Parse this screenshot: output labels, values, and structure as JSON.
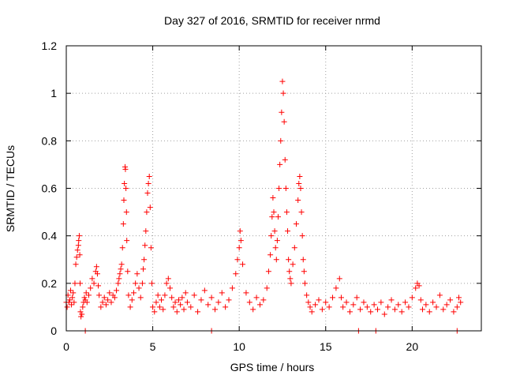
{
  "chart_data": {
    "type": "scatter",
    "title": "Day 327 of 2016, SRMTID for receiver nrmd",
    "xlabel": "GPS time / hours",
    "ylabel": "SRMTID / TECUs",
    "xlim": [
      0,
      24
    ],
    "ylim": [
      0,
      1.2
    ],
    "x_ticks": [
      0,
      5,
      10,
      15,
      20
    ],
    "x_tick_labels": [
      "0",
      "5",
      "10",
      "15",
      "20"
    ],
    "y_ticks": [
      0,
      0.2,
      0.4,
      0.6,
      0.8,
      1.0,
      1.2
    ],
    "y_tick_labels": [
      "0",
      "0.2",
      "0.4",
      "0.6",
      "0.8",
      "1",
      "1.2"
    ],
    "grid": true,
    "marker": "plus",
    "color": "#ff0000",
    "series": [
      {
        "name": "SRMTID",
        "x": [
          0.0,
          0.05,
          0.1,
          0.15,
          0.2,
          0.25,
          0.3,
          0.35,
          0.4,
          0.45,
          0.5,
          0.55,
          0.6,
          0.65,
          0.7,
          0.72,
          0.75,
          0.78,
          0.8,
          0.82,
          0.85,
          0.9,
          0.95,
          1.0,
          1.05,
          1.1,
          1.15,
          1.2,
          1.3,
          1.4,
          1.5,
          1.6,
          1.7,
          1.75,
          1.8,
          1.85,
          1.9,
          2.0,
          2.1,
          2.2,
          2.3,
          2.4,
          2.5,
          2.6,
          2.7,
          2.8,
          2.9,
          3.0,
          3.05,
          3.1,
          3.15,
          3.2,
          3.25,
          3.3,
          3.33,
          3.36,
          3.4,
          3.42,
          3.45,
          3.48,
          3.5,
          3.55,
          3.6,
          3.7,
          3.8,
          3.9,
          4.0,
          4.1,
          4.2,
          4.3,
          4.4,
          4.45,
          4.5,
          4.55,
          4.6,
          4.65,
          4.7,
          4.75,
          4.8,
          4.85,
          4.9,
          4.95,
          5.0,
          5.1,
          5.2,
          5.3,
          5.4,
          5.5,
          5.6,
          5.7,
          5.8,
          5.9,
          6.0,
          6.1,
          6.2,
          6.3,
          6.4,
          6.5,
          6.6,
          6.7,
          6.8,
          6.9,
          7.0,
          7.2,
          7.4,
          7.6,
          7.8,
          8.0,
          8.2,
          8.4,
          8.6,
          8.8,
          9.0,
          9.2,
          9.4,
          9.6,
          9.8,
          9.9,
          10.0,
          10.05,
          10.1,
          10.2,
          10.4,
          10.6,
          10.8,
          11.0,
          11.2,
          11.4,
          11.6,
          11.7,
          11.8,
          11.85,
          11.9,
          11.95,
          12.0,
          12.05,
          12.1,
          12.15,
          12.2,
          12.25,
          12.3,
          12.35,
          12.4,
          12.45,
          12.5,
          12.55,
          12.6,
          12.65,
          12.7,
          12.75,
          12.8,
          12.85,
          12.9,
          12.95,
          13.0,
          13.1,
          13.2,
          13.3,
          13.4,
          13.45,
          13.5,
          13.55,
          13.6,
          13.65,
          13.7,
          13.75,
          13.8,
          13.9,
          14.0,
          14.1,
          14.2,
          14.4,
          14.6,
          14.8,
          15.0,
          15.2,
          15.4,
          15.6,
          15.8,
          15.9,
          16.0,
          16.2,
          16.4,
          16.6,
          16.8,
          17.0,
          17.2,
          17.4,
          17.6,
          17.8,
          18.0,
          18.2,
          18.4,
          18.6,
          18.8,
          19.0,
          19.2,
          19.4,
          19.6,
          19.8,
          20.0,
          20.2,
          20.3,
          20.4,
          20.5,
          20.6,
          20.8,
          21.0,
          21.2,
          21.4,
          21.6,
          21.8,
          22.0,
          22.2,
          22.4,
          22.6,
          22.7,
          22.8
        ],
        "y": [
          0.12,
          0.1,
          0.15,
          0.12,
          0.13,
          0.17,
          0.11,
          0.14,
          0.16,
          0.12,
          0.2,
          0.28,
          0.31,
          0.34,
          0.36,
          0.38,
          0.4,
          0.32,
          0.2,
          0.08,
          0.06,
          0.07,
          0.1,
          0.12,
          0.14,
          0.13,
          0.16,
          0.12,
          0.15,
          0.18,
          0.22,
          0.2,
          0.25,
          0.27,
          0.24,
          0.19,
          0.15,
          0.1,
          0.12,
          0.14,
          0.11,
          0.13,
          0.16,
          0.12,
          0.15,
          0.14,
          0.17,
          0.2,
          0.22,
          0.24,
          0.26,
          0.28,
          0.35,
          0.45,
          0.55,
          0.62,
          0.69,
          0.68,
          0.6,
          0.5,
          0.38,
          0.25,
          0.15,
          0.1,
          0.13,
          0.16,
          0.2,
          0.24,
          0.18,
          0.14,
          0.2,
          0.26,
          0.3,
          0.36,
          0.42,
          0.5,
          0.58,
          0.62,
          0.65,
          0.52,
          0.35,
          0.2,
          0.1,
          0.08,
          0.12,
          0.15,
          0.1,
          0.13,
          0.09,
          0.15,
          0.2,
          0.22,
          0.18,
          0.14,
          0.1,
          0.12,
          0.08,
          0.13,
          0.11,
          0.14,
          0.09,
          0.16,
          0.12,
          0.1,
          0.15,
          0.08,
          0.13,
          0.17,
          0.11,
          0.14,
          0.09,
          0.12,
          0.16,
          0.1,
          0.13,
          0.18,
          0.24,
          0.3,
          0.35,
          0.42,
          0.38,
          0.28,
          0.16,
          0.12,
          0.09,
          0.14,
          0.11,
          0.13,
          0.18,
          0.25,
          0.32,
          0.4,
          0.48,
          0.56,
          0.5,
          0.42,
          0.35,
          0.3,
          0.38,
          0.48,
          0.6,
          0.7,
          0.8,
          0.92,
          1.05,
          1.0,
          0.88,
          0.72,
          0.6,
          0.5,
          0.42,
          0.3,
          0.25,
          0.22,
          0.2,
          0.28,
          0.35,
          0.45,
          0.55,
          0.62,
          0.65,
          0.6,
          0.5,
          0.4,
          0.3,
          0.25,
          0.2,
          0.15,
          0.12,
          0.1,
          0.08,
          0.11,
          0.13,
          0.09,
          0.12,
          0.1,
          0.14,
          0.18,
          0.22,
          0.14,
          0.1,
          0.12,
          0.08,
          0.11,
          0.14,
          0.09,
          0.12,
          0.1,
          0.08,
          0.11,
          0.09,
          0.12,
          0.07,
          0.1,
          0.13,
          0.09,
          0.11,
          0.08,
          0.12,
          0.1,
          0.14,
          0.18,
          0.2,
          0.19,
          0.13,
          0.09,
          0.11,
          0.08,
          0.12,
          0.1,
          0.15,
          0.09,
          0.11,
          0.13,
          0.08,
          0.1,
          0.14,
          0.12
        ]
      }
    ],
    "baseline_markers_x": [
      1.1,
      8.4,
      16.9,
      17.9,
      22.6
    ]
  }
}
